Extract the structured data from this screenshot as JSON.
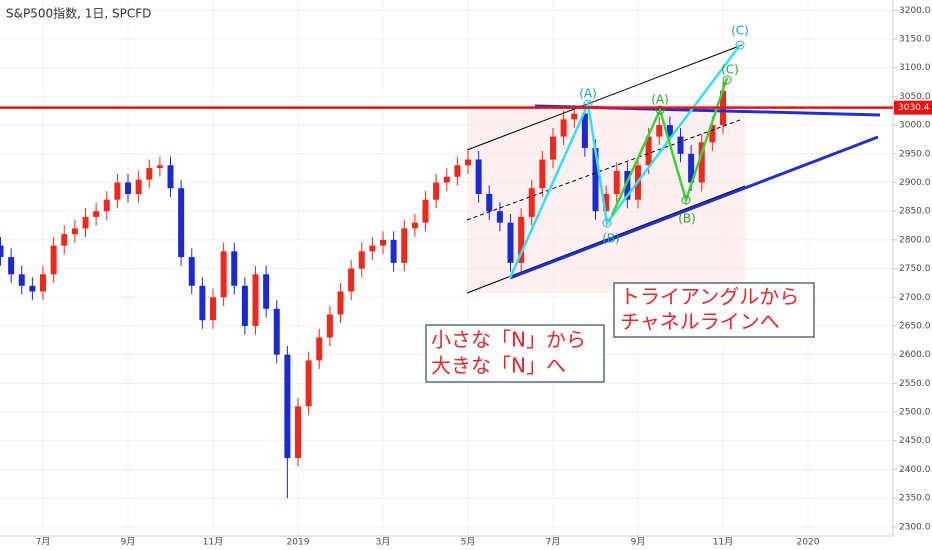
{
  "chart_data": {
    "type": "candlestick",
    "title": "S&P500指数, 1日, SPCFD",
    "categories": [
      null,
      null,
      null,
      null,
      "7月",
      null,
      null,
      null,
      null,
      null,
      null,
      null,
      "9月",
      null,
      null,
      null,
      null,
      null,
      null,
      null,
      "11月",
      null,
      null,
      null,
      null,
      null,
      null,
      null,
      "2019",
      null,
      null,
      null,
      null,
      null,
      null,
      null,
      "3月",
      null,
      null,
      null,
      null,
      null,
      null,
      null,
      "5月",
      null,
      null,
      null,
      null,
      null,
      null,
      null,
      "7月",
      null,
      null,
      null,
      null,
      null,
      null,
      null,
      "9月",
      null,
      null,
      null,
      null,
      null,
      null,
      null,
      "11月",
      null,
      null,
      null,
      null,
      null,
      null,
      null,
      "2020"
    ],
    "open": [
      2790,
      2770,
      2740,
      2720,
      2710,
      2740,
      2790,
      2810,
      2820,
      2840,
      2850,
      2870,
      2900,
      2880,
      2905,
      2925,
      2930,
      2890,
      2770,
      2720,
      2660,
      2700,
      2780,
      2720,
      2650,
      2740,
      2680,
      2600,
      2420,
      2510,
      2590,
      2630,
      2670,
      2710,
      2750,
      2780,
      2790,
      2800,
      2760,
      2820,
      2830,
      2870,
      2900,
      2910,
      2930,
      2940,
      2880,
      2850,
      2830,
      2760,
      2840,
      2890,
      2940,
      2980,
      3010,
      3020,
      2960,
      2850,
      2880,
      2920,
      2870,
      2930,
      2980,
      3000,
      2980,
      2950,
      2900,
      2970,
      3000,
      null,
      null,
      null,
      null,
      null,
      null,
      null,
      null
    ],
    "high": [
      2805,
      2785,
      2755,
      2735,
      2755,
      2805,
      2825,
      2835,
      2855,
      2865,
      2885,
      2915,
      2915,
      2920,
      2940,
      2945,
      2945,
      2905,
      2785,
      2735,
      2715,
      2795,
      2795,
      2735,
      2755,
      2755,
      2695,
      2615,
      2525,
      2605,
      2645,
      2685,
      2725,
      2765,
      2795,
      2805,
      2815,
      2815,
      2835,
      2845,
      2885,
      2915,
      2925,
      2945,
      2955,
      2955,
      2895,
      2865,
      2845,
      2855,
      2905,
      2955,
      2995,
      3025,
      3035,
      3035,
      2975,
      2895,
      2935,
      2935,
      2945,
      2995,
      3015,
      3015,
      2995,
      2965,
      2985,
      3015,
      3075,
      null,
      null,
      null,
      null,
      null,
      null,
      null,
      null
    ],
    "low": [
      2755,
      2725,
      2705,
      2695,
      2695,
      2725,
      2775,
      2795,
      2805,
      2825,
      2835,
      2855,
      2865,
      2865,
      2890,
      2910,
      2875,
      2755,
      2705,
      2645,
      2645,
      2685,
      2705,
      2635,
      2635,
      2665,
      2585,
      2350,
      2405,
      2495,
      2575,
      2615,
      2655,
      2695,
      2735,
      2765,
      2775,
      2745,
      2745,
      2805,
      2815,
      2855,
      2885,
      2895,
      2915,
      2865,
      2835,
      2815,
      2745,
      2745,
      2825,
      2875,
      2925,
      2965,
      2995,
      2945,
      2835,
      2835,
      2865,
      2855,
      2855,
      2915,
      2965,
      2965,
      2935,
      2885,
      2885,
      2955,
      2985,
      null,
      null,
      null,
      null,
      null,
      null,
      null,
      null
    ],
    "close": [
      2770,
      2740,
      2720,
      2710,
      2740,
      2790,
      2810,
      2820,
      2840,
      2850,
      2870,
      2900,
      2880,
      2905,
      2925,
      2930,
      2890,
      2770,
      2720,
      2660,
      2700,
      2780,
      2720,
      2650,
      2740,
      2680,
      2600,
      2420,
      2510,
      2590,
      2630,
      2670,
      2710,
      2750,
      2780,
      2790,
      2800,
      2760,
      2820,
      2830,
      2870,
      2900,
      2910,
      2930,
      2940,
      2880,
      2850,
      2830,
      2760,
      2840,
      2890,
      2940,
      2980,
      3010,
      3020,
      2960,
      2850,
      2880,
      2920,
      2870,
      2930,
      2980,
      3000,
      2980,
      2950,
      2900,
      2970,
      3000,
      3060,
      null,
      null,
      null,
      null,
      null,
      null,
      null,
      null
    ],
    "up_color": "#f0281e",
    "down_color": "#1a2ad6",
    "ylim": [
      2284,
      3218
    ],
    "yticks": [
      {
        "value": 2300,
        "label": "2300.0"
      },
      {
        "value": 2350,
        "label": "2350.0"
      },
      {
        "value": 2400,
        "label": "2400.0"
      },
      {
        "value": 2450,
        "label": "2450.0"
      },
      {
        "value": 2500,
        "label": "2500.0"
      },
      {
        "value": 2550,
        "label": "2550.0"
      },
      {
        "value": 2600,
        "label": "2600.0"
      },
      {
        "value": 2650,
        "label": "2650.0"
      },
      {
        "value": 2700,
        "label": "2700.0"
      },
      {
        "value": 2750,
        "label": "2750.0"
      },
      {
        "value": 2800,
        "label": "2800.0"
      },
      {
        "value": 2850,
        "label": "2850.0"
      },
      {
        "value": 2900,
        "label": "2900.0"
      },
      {
        "value": 2950,
        "label": "2950.0"
      },
      {
        "value": 3000,
        "label": "3000.0"
      },
      {
        "value": 3050,
        "label": "3050.0"
      },
      {
        "value": 3100,
        "label": "3100.0"
      },
      {
        "value": 3150,
        "label": "3150.0"
      },
      {
        "value": 3200,
        "label": "3200.0"
      }
    ],
    "grid": true,
    "price_line": 3030.4,
    "price_line_color": "#ee1111",
    "wave_labels": [
      "(A)",
      "(B)",
      "(C)",
      "(A)",
      "(B)",
      "(C)"
    ],
    "notes": [
      [
        "トライアングルから",
        "チャネルラインへ"
      ],
      [
        "小さな「N」から",
        "大きな「N」へ"
      ]
    ]
  }
}
